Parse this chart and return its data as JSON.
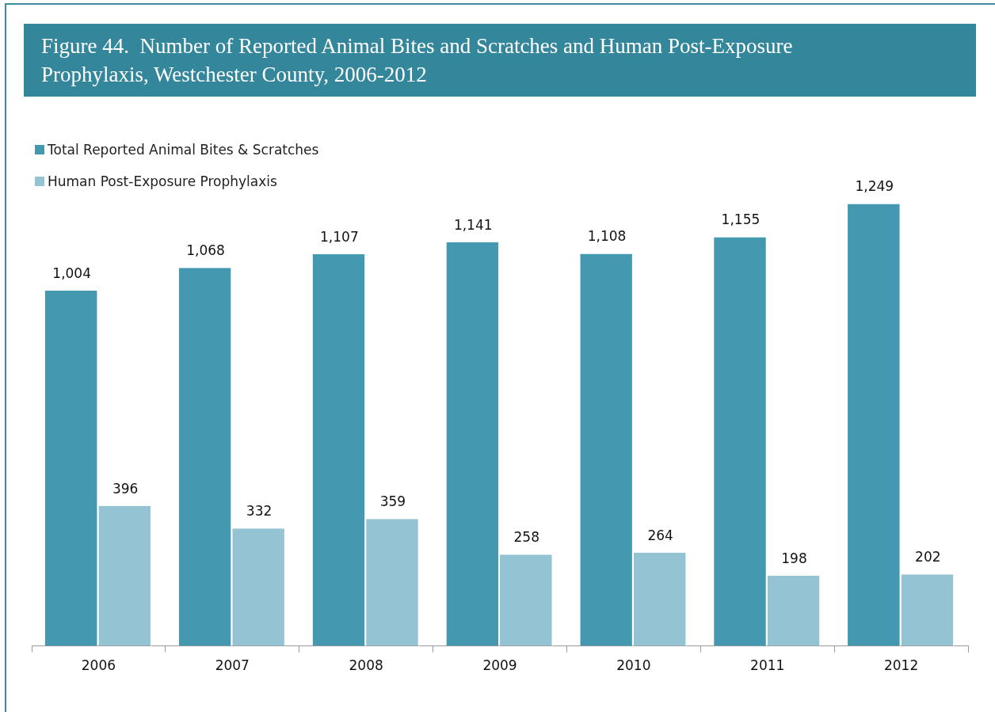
{
  "chart_data": {
    "type": "bar",
    "title": "Figure 44.  Number of Reported Animal Bites and Scratches and Human Post-Exposure Prophylaxis, Westchester County, 2006-2012",
    "categories": [
      "2006",
      "2007",
      "2008",
      "2009",
      "2010",
      "2011",
      "2012"
    ],
    "series": [
      {
        "name": "Total Reported Animal Bites & Scratches",
        "color": "#4499b0",
        "values": [
          1004,
          1068,
          1107,
          1141,
          1108,
          1155,
          1249
        ],
        "value_labels": [
          "1,004",
          "1,068",
          "1,107",
          "1,141",
          "1,108",
          "1,155",
          "1,249"
        ]
      },
      {
        "name": "Human Post-Exposure Prophylaxis",
        "color": "#94c3d4",
        "values": [
          396,
          332,
          359,
          258,
          264,
          198,
          202
        ],
        "value_labels": [
          "396",
          "332",
          "359",
          "258",
          "264",
          "198",
          "202"
        ]
      }
    ],
    "legend": "top left",
    "grid": false
  }
}
